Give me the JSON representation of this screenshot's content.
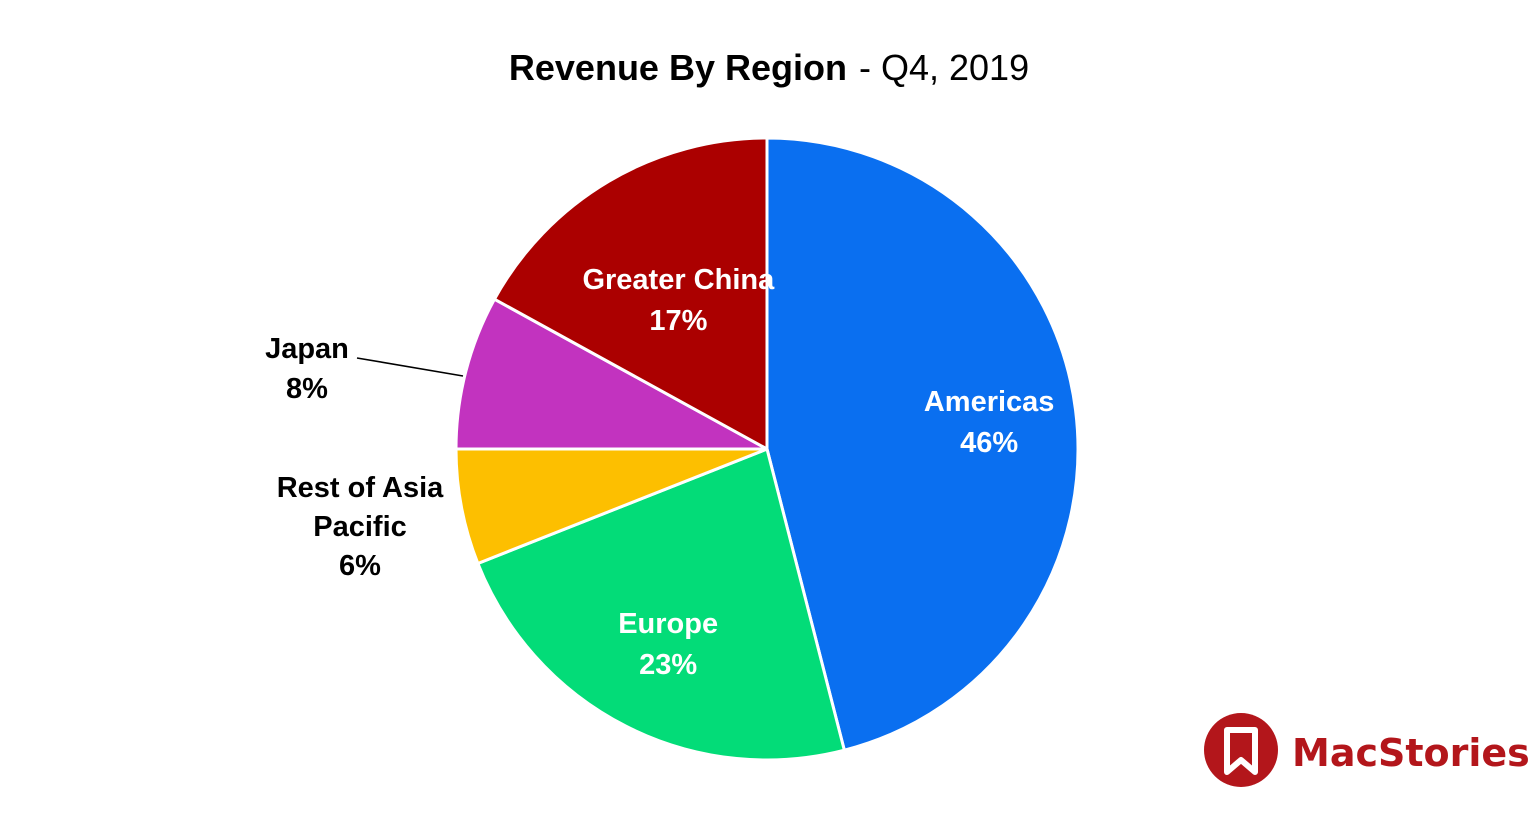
{
  "chart_data": {
    "type": "pie",
    "title": "Revenue By Region",
    "subtitle": "- Q4, 2019",
    "slices": [
      {
        "label": "Americas",
        "value": 46,
        "value_label": "46%",
        "color": "#0a6ff0",
        "text_color": "#ffffff"
      },
      {
        "label": "Europe",
        "value": 23,
        "value_label": "23%",
        "color": "#03dc78",
        "text_color": "#ffffff"
      },
      {
        "label": "Rest of Asia Pacific",
        "label_lines": [
          "Rest of Asia",
          "Pacific"
        ],
        "value": 6,
        "value_label": "6%",
        "color": "#fdbf00",
        "text_color": "#000000"
      },
      {
        "label": "Japan",
        "value": 8,
        "value_label": "8%",
        "color": "#c233bf",
        "text_color": "#000000"
      },
      {
        "label": "Greater China",
        "value": 17,
        "value_label": "17%",
        "color": "#ab0000",
        "text_color": "#ffffff"
      }
    ],
    "legend": "none",
    "labels": "on slice, small slices outside"
  },
  "brand": {
    "name": "MacStories",
    "color": "#b3161b",
    "icon": "bookmark-icon"
  }
}
